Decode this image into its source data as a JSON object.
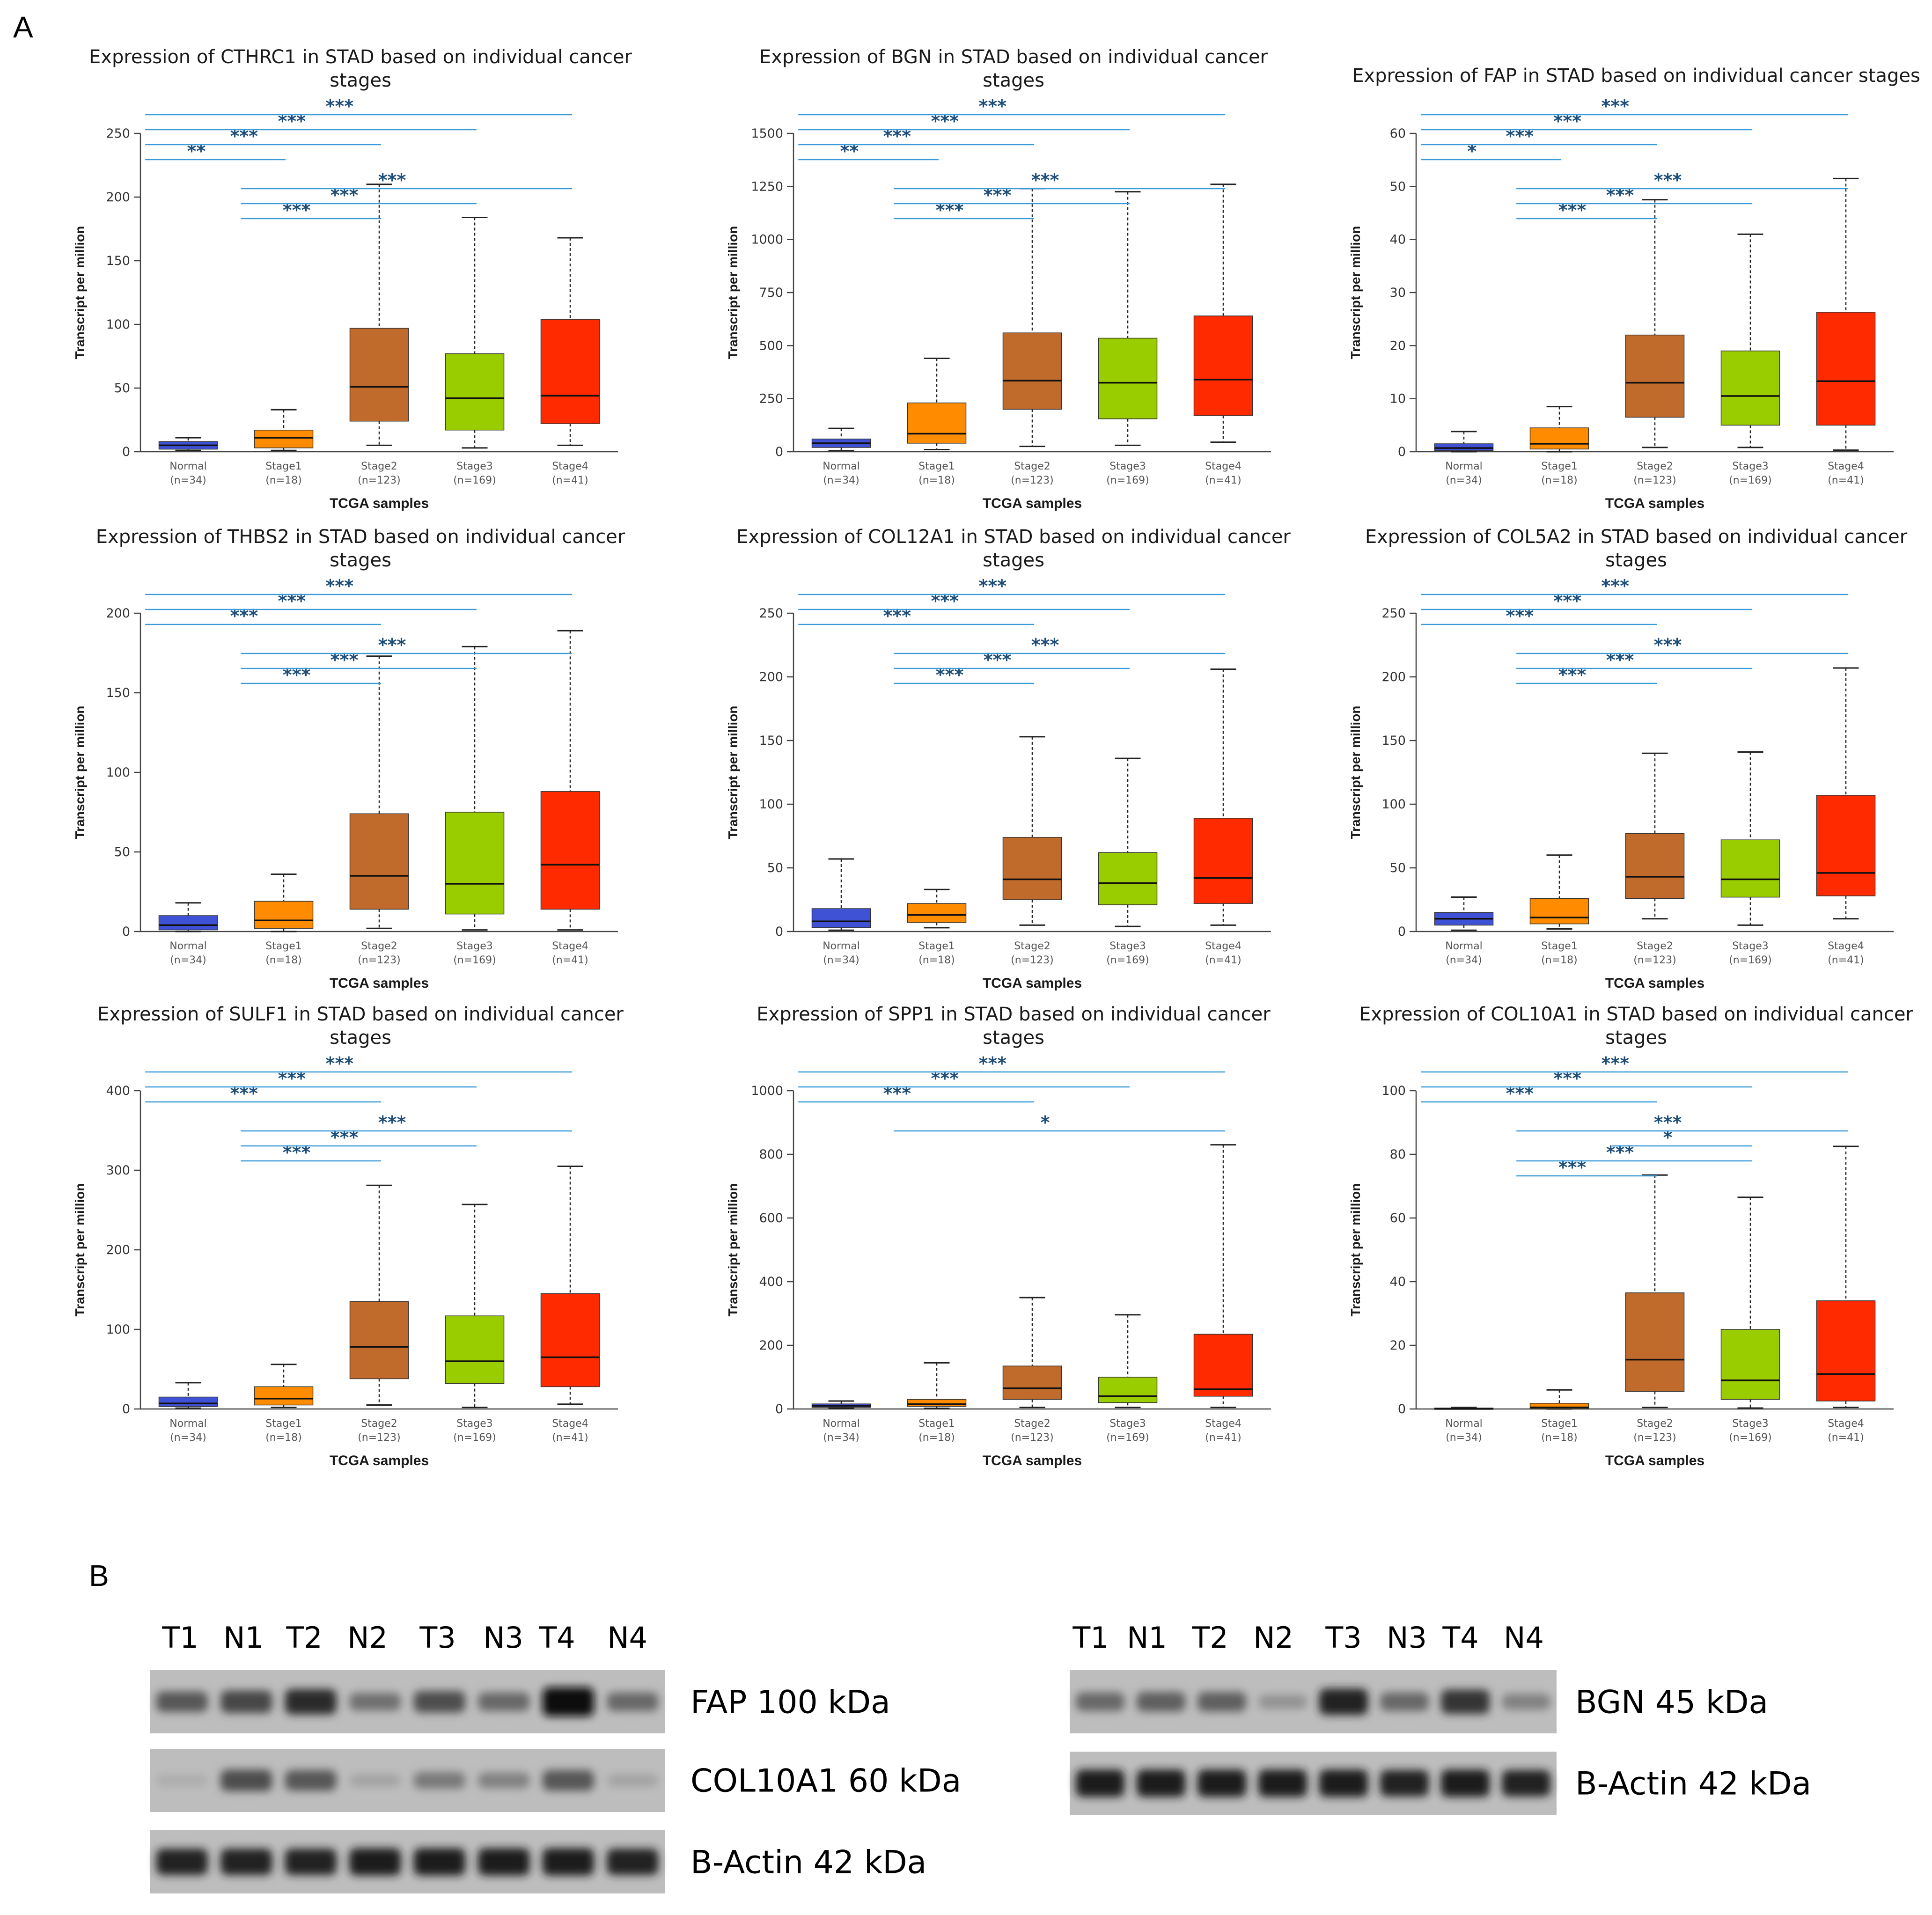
{
  "figure": {
    "panel_a_label": "A",
    "panel_b_label": "B",
    "colors": {
      "normal": "#3f52d6",
      "stage1": "#ff8c00",
      "stage2": "#c06a2b",
      "stage3": "#9acd00",
      "stage4": "#ff2a00",
      "significance_line": "#3a9ad9",
      "significance_text": "#1f4e79"
    }
  },
  "chart_data": [
    {
      "type": "box",
      "title": "Expression of CTHRC1 in STAD based on individual cancer stages",
      "title_lines": [
        "Expression of CTHRC1 in STAD based on individual cancer",
        "stages"
      ],
      "xlabel": "TCGA samples",
      "ylabel": "Transcript per million",
      "ylim": [
        0,
        250
      ],
      "yticks": [
        0,
        50,
        100,
        150,
        200,
        250
      ],
      "categories": [
        "Normal",
        "Stage1",
        "Stage2",
        "Stage3",
        "Stage4"
      ],
      "counts": [
        "(n=34)",
        "(n=18)",
        "(n=123)",
        "(n=169)",
        "(n=41)"
      ],
      "boxes": [
        {
          "min": 1,
          "q1": 2,
          "median": 5,
          "q3": 8,
          "max": 11
        },
        {
          "min": 1,
          "q1": 3,
          "median": 11,
          "q3": 17,
          "max": 33
        },
        {
          "min": 5,
          "q1": 24,
          "median": 51,
          "q3": 97,
          "max": 210
        },
        {
          "min": 3,
          "q1": 17,
          "median": 42,
          "q3": 77,
          "max": 184
        },
        {
          "min": 5,
          "q1": 22,
          "median": 44,
          "q3": 104,
          "max": 168
        }
      ],
      "significance": [
        {
          "from": 0,
          "to": 1,
          "label": "**"
        },
        {
          "from": 0,
          "to": 2,
          "label": "***"
        },
        {
          "from": 0,
          "to": 3,
          "label": "***"
        },
        {
          "from": 0,
          "to": 4,
          "label": "***"
        },
        {
          "from": 1,
          "to": 2,
          "label": "***"
        },
        {
          "from": 1,
          "to": 3,
          "label": "***"
        },
        {
          "from": 1,
          "to": 4,
          "label": "***"
        }
      ]
    },
    {
      "type": "box",
      "title": "Expression of BGN in STAD based on individual cancer stages",
      "title_lines": [
        "Expression of BGN in STAD based on individual cancer",
        "stages"
      ],
      "xlabel": "TCGA samples",
      "ylabel": "Transcript per million",
      "ylim": [
        0,
        1500
      ],
      "yticks": [
        0,
        250,
        500,
        750,
        1000,
        1250,
        1500
      ],
      "categories": [
        "Normal",
        "Stage1",
        "Stage2",
        "Stage3",
        "Stage4"
      ],
      "counts": [
        "(n=34)",
        "(n=18)",
        "(n=123)",
        "(n=169)",
        "(n=41)"
      ],
      "boxes": [
        {
          "min": 5,
          "q1": 20,
          "median": 40,
          "q3": 60,
          "max": 110
        },
        {
          "min": 10,
          "q1": 40,
          "median": 85,
          "q3": 230,
          "max": 440
        },
        {
          "min": 25,
          "q1": 200,
          "median": 335,
          "q3": 560,
          "max": 1240
        },
        {
          "min": 30,
          "q1": 155,
          "median": 325,
          "q3": 535,
          "max": 1225
        },
        {
          "min": 45,
          "q1": 170,
          "median": 340,
          "q3": 640,
          "max": 1260
        }
      ],
      "significance": [
        {
          "from": 0,
          "to": 1,
          "label": "**"
        },
        {
          "from": 0,
          "to": 2,
          "label": "***"
        },
        {
          "from": 0,
          "to": 3,
          "label": "***"
        },
        {
          "from": 0,
          "to": 4,
          "label": "***"
        },
        {
          "from": 1,
          "to": 2,
          "label": "***"
        },
        {
          "from": 1,
          "to": 3,
          "label": "***"
        },
        {
          "from": 1,
          "to": 4,
          "label": "***"
        }
      ]
    },
    {
      "type": "box",
      "title": "Expression of FAP in STAD based on individual cancer stages",
      "title_lines": [
        "Expression of FAP in STAD based on individual cancer stages"
      ],
      "xlabel": "TCGA samples",
      "ylabel": "Transcript per million",
      "ylim": [
        0,
        60
      ],
      "yticks": [
        0,
        10,
        20,
        30,
        40,
        50,
        60
      ],
      "categories": [
        "Normal",
        "Stage1",
        "Stage2",
        "Stage3",
        "Stage4"
      ],
      "counts": [
        "(n=34)",
        "(n=18)",
        "(n=123)",
        "(n=169)",
        "(n=41)"
      ],
      "boxes": [
        {
          "min": 0,
          "q1": 0.2,
          "median": 0.7,
          "q3": 1.5,
          "max": 3.8
        },
        {
          "min": 0,
          "q1": 0.5,
          "median": 1.5,
          "q3": 4.5,
          "max": 8.5
        },
        {
          "min": 0.8,
          "q1": 6.5,
          "median": 13,
          "q3": 22,
          "max": 47.5
        },
        {
          "min": 0.8,
          "q1": 5,
          "median": 10.5,
          "q3": 19,
          "max": 41
        },
        {
          "min": 0.3,
          "q1": 5,
          "median": 13.3,
          "q3": 26.3,
          "max": 51.5
        }
      ],
      "significance": [
        {
          "from": 0,
          "to": 1,
          "label": "*"
        },
        {
          "from": 0,
          "to": 2,
          "label": "***"
        },
        {
          "from": 0,
          "to": 3,
          "label": "***"
        },
        {
          "from": 0,
          "to": 4,
          "label": "***"
        },
        {
          "from": 1,
          "to": 2,
          "label": "***"
        },
        {
          "from": 1,
          "to": 3,
          "label": "***"
        },
        {
          "from": 1,
          "to": 4,
          "label": "***"
        }
      ]
    },
    {
      "type": "box",
      "title": "Expression of THBS2 in STAD based on individual cancer stages",
      "title_lines": [
        "Expression of THBS2 in STAD based on individual cancer",
        "stages"
      ],
      "xlabel": "TCGA samples",
      "ylabel": "Transcript per million",
      "ylim": [
        0,
        200
      ],
      "yticks": [
        0,
        50,
        100,
        150,
        200
      ],
      "categories": [
        "Normal",
        "Stage1",
        "Stage2",
        "Stage3",
        "Stage4"
      ],
      "counts": [
        "(n=34)",
        "(n=18)",
        "(n=123)",
        "(n=169)",
        "(n=41)"
      ],
      "boxes": [
        {
          "min": 0,
          "q1": 1,
          "median": 4,
          "q3": 10,
          "max": 18
        },
        {
          "min": 0,
          "q1": 2,
          "median": 7,
          "q3": 19,
          "max": 36
        },
        {
          "min": 2,
          "q1": 14,
          "median": 35,
          "q3": 74,
          "max": 173
        },
        {
          "min": 1,
          "q1": 11,
          "median": 30,
          "q3": 75,
          "max": 179
        },
        {
          "min": 1,
          "q1": 14,
          "median": 42,
          "q3": 88,
          "max": 189
        }
      ],
      "significance": [
        {
          "from": 0,
          "to": 2,
          "label": "***"
        },
        {
          "from": 0,
          "to": 3,
          "label": "***"
        },
        {
          "from": 0,
          "to": 4,
          "label": "***"
        },
        {
          "from": 1,
          "to": 2,
          "label": "***"
        },
        {
          "from": 1,
          "to": 3,
          "label": "***"
        },
        {
          "from": 1,
          "to": 4,
          "label": "***"
        }
      ]
    },
    {
      "type": "box",
      "title": "Expression of COL12A1 in STAD based on individual cancer stages",
      "title_lines": [
        "Expression of COL12A1 in STAD based on individual cancer",
        "stages"
      ],
      "xlabel": "TCGA samples",
      "ylabel": "Transcript per million",
      "ylim": [
        0,
        250
      ],
      "yticks": [
        0,
        50,
        100,
        150,
        200,
        250
      ],
      "categories": [
        "Normal",
        "Stage1",
        "Stage2",
        "Stage3",
        "Stage4"
      ],
      "counts": [
        "(n=34)",
        "(n=18)",
        "(n=123)",
        "(n=169)",
        "(n=41)"
      ],
      "boxes": [
        {
          "min": 1,
          "q1": 3,
          "median": 8,
          "q3": 18,
          "max": 57
        },
        {
          "min": 3,
          "q1": 7,
          "median": 13,
          "q3": 22,
          "max": 33
        },
        {
          "min": 5,
          "q1": 25,
          "median": 41,
          "q3": 74,
          "max": 153
        },
        {
          "min": 4,
          "q1": 21,
          "median": 38,
          "q3": 62,
          "max": 136
        },
        {
          "min": 5,
          "q1": 22,
          "median": 42,
          "q3": 89,
          "max": 206
        }
      ],
      "significance": [
        {
          "from": 0,
          "to": 2,
          "label": "***"
        },
        {
          "from": 0,
          "to": 3,
          "label": "***"
        },
        {
          "from": 0,
          "to": 4,
          "label": "***"
        },
        {
          "from": 1,
          "to": 2,
          "label": "***"
        },
        {
          "from": 1,
          "to": 3,
          "label": "***"
        },
        {
          "from": 1,
          "to": 4,
          "label": "***"
        }
      ]
    },
    {
      "type": "box",
      "title": "Expression of COL5A2 in STAD based on individual cancer stages",
      "title_lines": [
        "Expression of COL5A2 in STAD based on individual cancer",
        "stages"
      ],
      "xlabel": "TCGA samples",
      "ylabel": "Transcript per million",
      "ylim": [
        0,
        250
      ],
      "yticks": [
        0,
        50,
        100,
        150,
        200,
        250
      ],
      "categories": [
        "Normal",
        "Stage1",
        "Stage2",
        "Stage3",
        "Stage4"
      ],
      "counts": [
        "(n=34)",
        "(n=18)",
        "(n=123)",
        "(n=169)",
        "(n=41)"
      ],
      "boxes": [
        {
          "min": 1,
          "q1": 5,
          "median": 10,
          "q3": 15,
          "max": 27
        },
        {
          "min": 2,
          "q1": 6,
          "median": 11,
          "q3": 26,
          "max": 60
        },
        {
          "min": 10,
          "q1": 26,
          "median": 43,
          "q3": 77,
          "max": 140
        },
        {
          "min": 5,
          "q1": 27,
          "median": 41,
          "q3": 72,
          "max": 141
        },
        {
          "min": 10,
          "q1": 28,
          "median": 46,
          "q3": 107,
          "max": 207
        }
      ],
      "significance": [
        {
          "from": 0,
          "to": 2,
          "label": "***"
        },
        {
          "from": 0,
          "to": 3,
          "label": "***"
        },
        {
          "from": 0,
          "to": 4,
          "label": "***"
        },
        {
          "from": 1,
          "to": 2,
          "label": "***"
        },
        {
          "from": 1,
          "to": 3,
          "label": "***"
        },
        {
          "from": 1,
          "to": 4,
          "label": "***"
        }
      ]
    },
    {
      "type": "box",
      "title": "Expression of SULF1 in STAD based on individual cancer stages",
      "title_lines": [
        "Expression of SULF1 in STAD based on individual cancer",
        "stages"
      ],
      "xlabel": "TCGA samples",
      "ylabel": "Transcript per million",
      "ylim": [
        0,
        400
      ],
      "yticks": [
        0,
        100,
        200,
        300,
        400
      ],
      "categories": [
        "Normal",
        "Stage1",
        "Stage2",
        "Stage3",
        "Stage4"
      ],
      "counts": [
        "(n=34)",
        "(n=18)",
        "(n=123)",
        "(n=169)",
        "(n=41)"
      ],
      "boxes": [
        {
          "min": 1,
          "q1": 3,
          "median": 7,
          "q3": 15,
          "max": 33
        },
        {
          "min": 2,
          "q1": 5,
          "median": 13,
          "q3": 28,
          "max": 56
        },
        {
          "min": 5,
          "q1": 38,
          "median": 78,
          "q3": 135,
          "max": 281
        },
        {
          "min": 2,
          "q1": 32,
          "median": 60,
          "q3": 117,
          "max": 257
        },
        {
          "min": 6,
          "q1": 28,
          "median": 65,
          "q3": 145,
          "max": 305
        }
      ],
      "significance": [
        {
          "from": 0,
          "to": 2,
          "label": "***"
        },
        {
          "from": 0,
          "to": 3,
          "label": "***"
        },
        {
          "from": 0,
          "to": 4,
          "label": "***"
        },
        {
          "from": 1,
          "to": 2,
          "label": "***"
        },
        {
          "from": 1,
          "to": 3,
          "label": "***"
        },
        {
          "from": 1,
          "to": 4,
          "label": "***"
        }
      ]
    },
    {
      "type": "box",
      "title": "Expression of SPP1 in STAD based on individual cancer stages",
      "title_lines": [
        "Expression of SPP1 in STAD based on individual cancer",
        "stages"
      ],
      "xlabel": "TCGA samples",
      "ylabel": "Transcript per million",
      "ylim": [
        0,
        1000
      ],
      "yticks": [
        0,
        200,
        400,
        600,
        800,
        1000
      ],
      "categories": [
        "Normal",
        "Stage1",
        "Stage2",
        "Stage3",
        "Stage4"
      ],
      "counts": [
        "(n=34)",
        "(n=18)",
        "(n=123)",
        "(n=169)",
        "(n=41)"
      ],
      "boxes": [
        {
          "min": 2,
          "q1": 5,
          "median": 10,
          "q3": 16,
          "max": 25
        },
        {
          "min": 2,
          "q1": 8,
          "median": 15,
          "q3": 30,
          "max": 145
        },
        {
          "min": 5,
          "q1": 30,
          "median": 65,
          "q3": 135,
          "max": 350
        },
        {
          "min": 5,
          "q1": 20,
          "median": 40,
          "q3": 100,
          "max": 296
        },
        {
          "min": 5,
          "q1": 40,
          "median": 62,
          "q3": 235,
          "max": 830
        }
      ],
      "significance": [
        {
          "from": 0,
          "to": 2,
          "label": "***"
        },
        {
          "from": 0,
          "to": 3,
          "label": "***"
        },
        {
          "from": 0,
          "to": 4,
          "label": "***"
        },
        {
          "from": 1,
          "to": 4,
          "label": "*"
        }
      ]
    },
    {
      "type": "box",
      "title": "Expression of COL10A1 in STAD based on individual cancer stages",
      "title_lines": [
        "Expression of COL10A1 in STAD based on individual cancer",
        "stages"
      ],
      "xlabel": "TCGA samples",
      "ylabel": "Transcript per million",
      "ylim": [
        0,
        100
      ],
      "yticks": [
        0,
        20,
        40,
        60,
        80,
        100
      ],
      "categories": [
        "Normal",
        "Stage1",
        "Stage2",
        "Stage3",
        "Stage4"
      ],
      "counts": [
        "(n=34)",
        "(n=18)",
        "(n=123)",
        "(n=169)",
        "(n=41)"
      ],
      "boxes": [
        {
          "min": 0,
          "q1": 0,
          "median": 0.1,
          "q3": 0.3,
          "max": 0.5
        },
        {
          "min": 0,
          "q1": 0.1,
          "median": 0.5,
          "q3": 1.8,
          "max": 6
        },
        {
          "min": 0.5,
          "q1": 5.5,
          "median": 15.5,
          "q3": 36.5,
          "max": 73.5
        },
        {
          "min": 0.3,
          "q1": 3,
          "median": 9,
          "q3": 25,
          "max": 66.5
        },
        {
          "min": 0.5,
          "q1": 2.5,
          "median": 11,
          "q3": 34,
          "max": 82.5
        }
      ],
      "significance": [
        {
          "from": 0,
          "to": 2,
          "label": "***"
        },
        {
          "from": 0,
          "to": 3,
          "label": "***"
        },
        {
          "from": 0,
          "to": 4,
          "label": "***"
        },
        {
          "from": 1,
          "to": 2,
          "label": "***"
        },
        {
          "from": 1,
          "to": 3,
          "label": "***"
        },
        {
          "from": 1,
          "to": 4,
          "label": "***"
        },
        {
          "from": 2,
          "to": 3,
          "label": "*"
        }
      ]
    }
  ],
  "western_blot": {
    "left": {
      "lanes": [
        "T1",
        "N1",
        "T2",
        "N2",
        "T3",
        "N3",
        "T4",
        "N4"
      ],
      "blots": [
        {
          "label": "FAP 100 kDa",
          "intensity": [
            0.55,
            0.65,
            0.8,
            0.4,
            0.6,
            0.45,
            1.0,
            0.45
          ]
        },
        {
          "label": "COL10A1 60 kDa",
          "intensity": [
            0.05,
            0.6,
            0.55,
            0.1,
            0.35,
            0.3,
            0.55,
            0.1
          ]
        },
        {
          "label": "B-Actin 42 kDa",
          "intensity": [
            0.85,
            0.85,
            0.85,
            0.9,
            0.9,
            0.9,
            0.9,
            0.85
          ]
        }
      ]
    },
    "right": {
      "lanes": [
        "T1",
        "N1",
        "T2",
        "N2",
        "T3",
        "N3",
        "T4",
        "N4"
      ],
      "blots": [
        {
          "label": "BGN 45 kDa",
          "intensity": [
            0.45,
            0.5,
            0.5,
            0.2,
            0.85,
            0.45,
            0.75,
            0.3
          ]
        },
        {
          "label": "B-Actin 42 kDa",
          "intensity": [
            0.9,
            0.9,
            0.9,
            0.9,
            0.9,
            0.85,
            0.9,
            0.85
          ]
        }
      ]
    }
  }
}
